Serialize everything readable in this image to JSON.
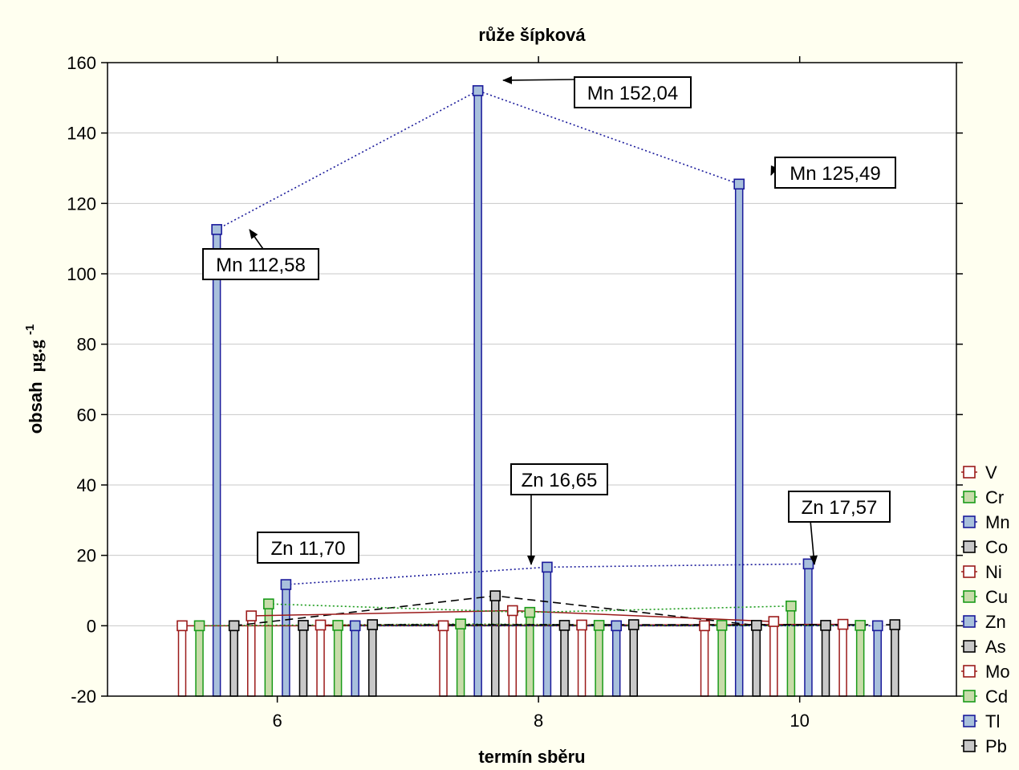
{
  "chart_data": {
    "type": "bar",
    "title": "růže šípková",
    "xlabel": "termín sběru",
    "ylabel": "obsah",
    "ylabel_unit": "µg.g",
    "ylabel_exp": "-1",
    "ylim": [
      -20,
      160
    ],
    "yticks": [
      -20,
      0,
      20,
      40,
      60,
      80,
      100,
      120,
      140,
      160
    ],
    "xlim": [
      4.7,
      11.2
    ],
    "xticks": [
      6,
      8,
      10
    ],
    "grid": true,
    "legend_position": "right",
    "groups": [
      6,
      8,
      10
    ],
    "series": [
      {
        "name": "V",
        "color": "#9b1a1a",
        "fill": "none",
        "values": [
          0,
          0,
          0
        ]
      },
      {
        "name": "Cr",
        "color": "#1a9b1a",
        "fill": "#c8dcaa",
        "values": [
          0,
          0.5,
          0.1
        ]
      },
      {
        "name": "Mn",
        "color": "#1a1a9b",
        "fill": "#a8c0dc",
        "values": [
          112.58,
          152.04,
          125.49
        ]
      },
      {
        "name": "Co",
        "color": "#000000",
        "fill": "#c8c8c8",
        "values": [
          0,
          8.5,
          0.1
        ]
      },
      {
        "name": "Ni",
        "color": "#9b1a1a",
        "fill": "none",
        "values": [
          2.8,
          4.3,
          1.2
        ]
      },
      {
        "name": "Cu",
        "color": "#1a9b1a",
        "fill": "#c8dcaa",
        "values": [
          6.2,
          3.8,
          5.6
        ]
      },
      {
        "name": "Zn",
        "color": "#1a1a9b",
        "fill": "#a8c0dc",
        "values": [
          11.7,
          16.65,
          17.57
        ]
      },
      {
        "name": "As",
        "color": "#000000",
        "fill": "#c8c8c8",
        "values": [
          0.1,
          0.1,
          0.1
        ]
      },
      {
        "name": "Mo",
        "color": "#9b1a1a",
        "fill": "none",
        "values": [
          0.2,
          0.2,
          0.4
        ]
      },
      {
        "name": "Cd",
        "color": "#1a9b1a",
        "fill": "#c8dcaa",
        "values": [
          0.1,
          0.1,
          0.1
        ]
      },
      {
        "name": "Tl",
        "color": "#1a1a9b",
        "fill": "#a8c0dc",
        "values": [
          0,
          0,
          0
        ]
      },
      {
        "name": "Pb",
        "color": "#000000",
        "fill": "#c8c8c8",
        "values": [
          0.3,
          0.3,
          0.3
        ]
      }
    ],
    "annotations": [
      {
        "text": "Mn 112,58",
        "series": "Mn",
        "group": 0
      },
      {
        "text": "Mn 152,04",
        "series": "Mn",
        "group": 1
      },
      {
        "text": "Mn 125,49",
        "series": "Mn",
        "group": 2
      },
      {
        "text": "Zn 11,70",
        "series": "Zn",
        "group": 0
      },
      {
        "text": "Zn 16,65",
        "series": "Zn",
        "group": 1
      },
      {
        "text": "Zn 17,57",
        "series": "Zn",
        "group": 2
      }
    ]
  }
}
